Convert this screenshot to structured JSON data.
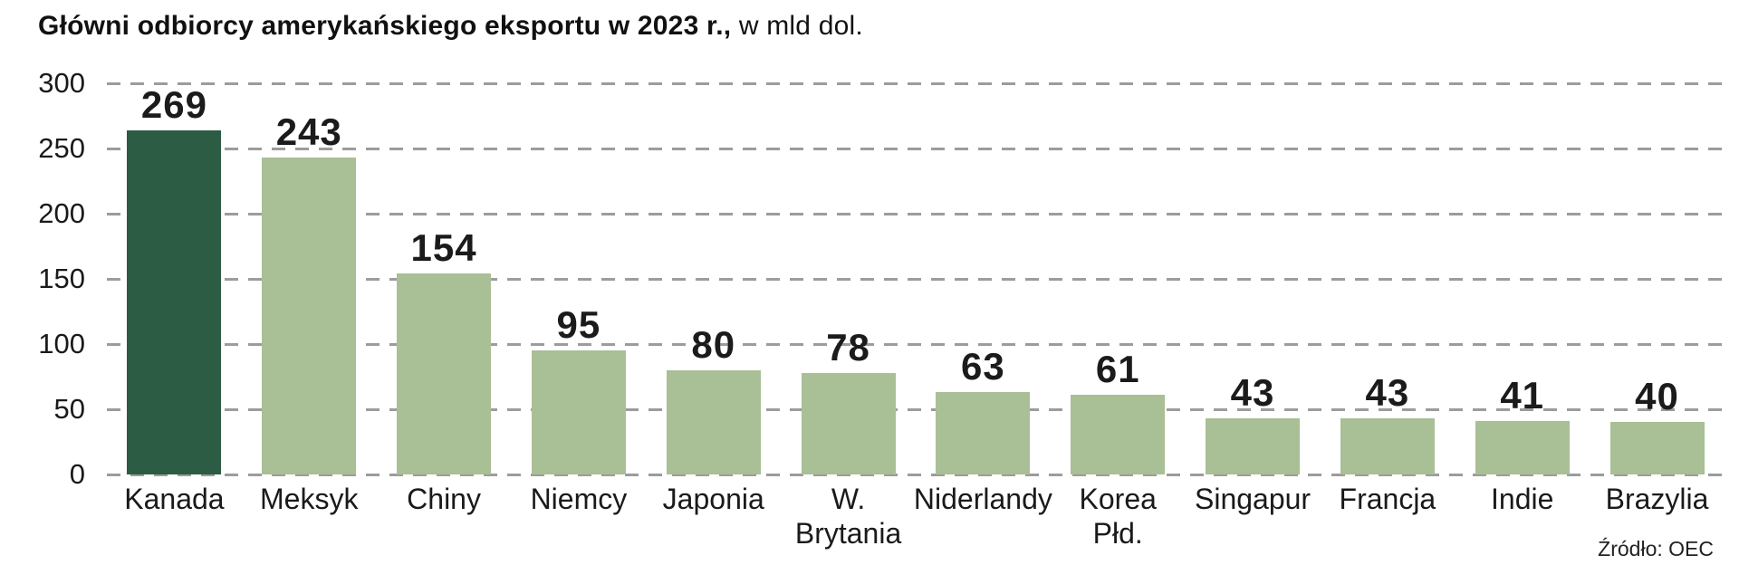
{
  "title": {
    "main": "Główni odbiorcy amerykańskiego eksportu w 2023 r.,",
    "unit": " w mld dol."
  },
  "source": "Źródło: OEC",
  "colors": {
    "bar_default": "#a9bf96",
    "bar_highlight": "#2c5c44",
    "gridline": "#9c9c9c",
    "text": "#1a1a1a"
  },
  "chart_data": {
    "type": "bar",
    "title": "Główni odbiorcy amerykańskiego eksportu w 2023 r., w mld dol.",
    "categories": [
      "Kanada",
      "Meksyk",
      "Chiny",
      "Niemcy",
      "Japonia",
      "W.\nBrytania",
      "Niderlandy",
      "Korea\nPłd.",
      "Singapur",
      "Francja",
      "Indie",
      "Brazylia"
    ],
    "values": [
      269,
      243,
      154,
      95,
      80,
      78,
      63,
      61,
      43,
      43,
      41,
      40
    ],
    "xlabel": "",
    "ylabel": "",
    "ylim": [
      0,
      300
    ],
    "yticks": [
      0,
      50,
      100,
      150,
      200,
      250,
      300
    ],
    "grid": "dashed-horizontal",
    "legend": "none",
    "highlight_index": 0,
    "value_labels": "above-bars"
  }
}
